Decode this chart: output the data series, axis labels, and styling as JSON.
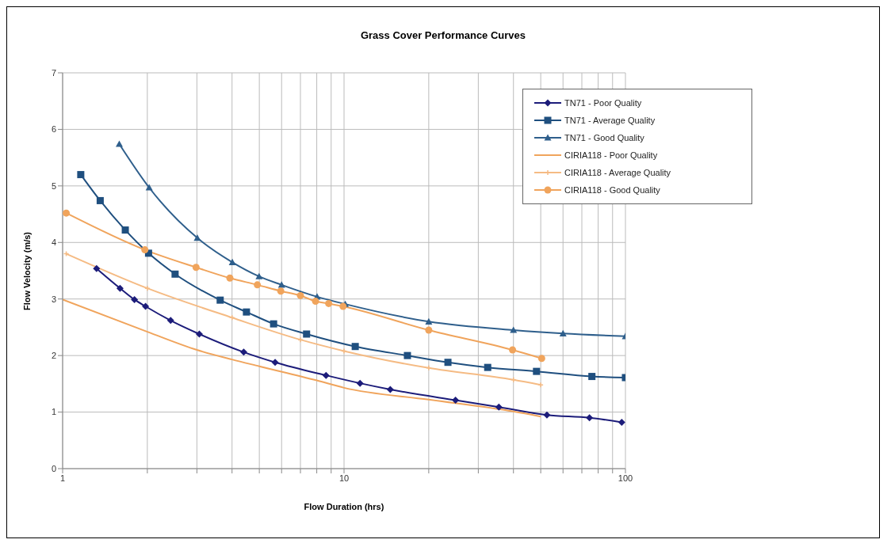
{
  "chart_data": {
    "type": "line",
    "title": "Grass Cover Performance Curves",
    "xlabel": "Flow Duration (hrs)",
    "ylabel": "Flow Velocity (m/s)",
    "xlim": [
      1,
      100
    ],
    "xticks": [
      1,
      {
        "value": 2,
        "label": null
      },
      {
        "value": 3,
        "label": null
      },
      {
        "value": 4,
        "label": null
      },
      {
        "value": 5,
        "label": null
      },
      {
        "value": 6,
        "label": null
      },
      {
        "value": 7,
        "label": null
      },
      {
        "value": 8,
        "label": null
      },
      {
        "value": 9,
        "label": null
      },
      10,
      {
        "value": 20,
        "label": null
      },
      {
        "value": 30,
        "label": null
      },
      {
        "value": 40,
        "label": null
      },
      {
        "value": 50,
        "label": null
      },
      {
        "value": 60,
        "label": null
      },
      {
        "value": 70,
        "label": null
      },
      {
        "value": 80,
        "label": null
      },
      {
        "value": 90,
        "label": null
      },
      100
    ],
    "ylim": [
      0,
      7
    ],
    "yticks": [
      0,
      1,
      2,
      3,
      4,
      5,
      6,
      7
    ],
    "log": "x",
    "grid": true,
    "legend": "top right",
    "line_style": "solid",
    "series": [
      {
        "name": "TN71 - Poor Quality",
        "color": "#1c1c7a",
        "marker": "diamond",
        "x": [
          1.32,
          1.6,
          1.8,
          1.97,
          2.42,
          3.06,
          4.4,
          5.69,
          8.63,
          11.4,
          14.6,
          24.9,
          35.5,
          52.6,
          74.5,
          97
        ],
        "values": [
          3.54,
          3.19,
          2.99,
          2.87,
          2.62,
          2.38,
          2.06,
          1.88,
          1.65,
          1.51,
          1.4,
          1.21,
          1.09,
          0.95,
          0.9,
          0.82
        ]
      },
      {
        "name": "TN71 - Average Quality",
        "color": "#1f4f7f",
        "marker": "square",
        "x": [
          1.16,
          1.36,
          1.67,
          2.02,
          2.51,
          3.63,
          4.5,
          5.62,
          7.36,
          10.96,
          16.8,
          23.4,
          32.4,
          48.3,
          76,
          100
        ],
        "values": [
          5.2,
          4.74,
          4.22,
          3.81,
          3.44,
          2.98,
          2.77,
          2.56,
          2.38,
          2.16,
          2.0,
          1.88,
          1.79,
          1.72,
          1.63,
          1.61
        ]
      },
      {
        "name": "TN71 - Good Quality",
        "color": "#2f5f8c",
        "marker": "triangle",
        "x": [
          1.59,
          2.03,
          3.01,
          4.01,
          4.99,
          6.0,
          8.02,
          10.1,
          20,
          40,
          60,
          100
        ],
        "values": [
          5.74,
          4.97,
          4.08,
          3.65,
          3.4,
          3.25,
          3.04,
          2.91,
          2.6,
          2.45,
          2.39,
          2.34
        ]
      },
      {
        "name": "CIRIA118 - Poor Quality",
        "color": "#f0a45c",
        "marker": "none",
        "x": [
          1.0,
          2.0,
          3.0,
          4.0,
          5.0,
          8.0,
          10,
          20,
          40,
          50
        ],
        "values": [
          2.99,
          2.42,
          2.1,
          1.93,
          1.81,
          1.56,
          1.43,
          1.22,
          1.01,
          0.92
        ]
      },
      {
        "name": "CIRIA118 - Average Quality",
        "color": "#f5bb84",
        "marker": "cross",
        "x": [
          1.03,
          2.0,
          4.0,
          7.0,
          10,
          20,
          40,
          50
        ],
        "values": [
          3.8,
          3.19,
          2.67,
          2.28,
          2.08,
          1.78,
          1.57,
          1.48
        ]
      },
      {
        "name": "CIRIA118 - Good Quality",
        "color": "#f0a45c",
        "marker": "circle",
        "x": [
          1.03,
          1.96,
          2.98,
          3.93,
          4.92,
          5.96,
          7.0,
          7.92,
          8.82,
          9.92,
          20,
          39.7,
          50.4
        ],
        "values": [
          4.52,
          3.87,
          3.56,
          3.37,
          3.25,
          3.14,
          3.06,
          2.96,
          2.92,
          2.87,
          2.45,
          2.1,
          1.95
        ]
      }
    ]
  }
}
